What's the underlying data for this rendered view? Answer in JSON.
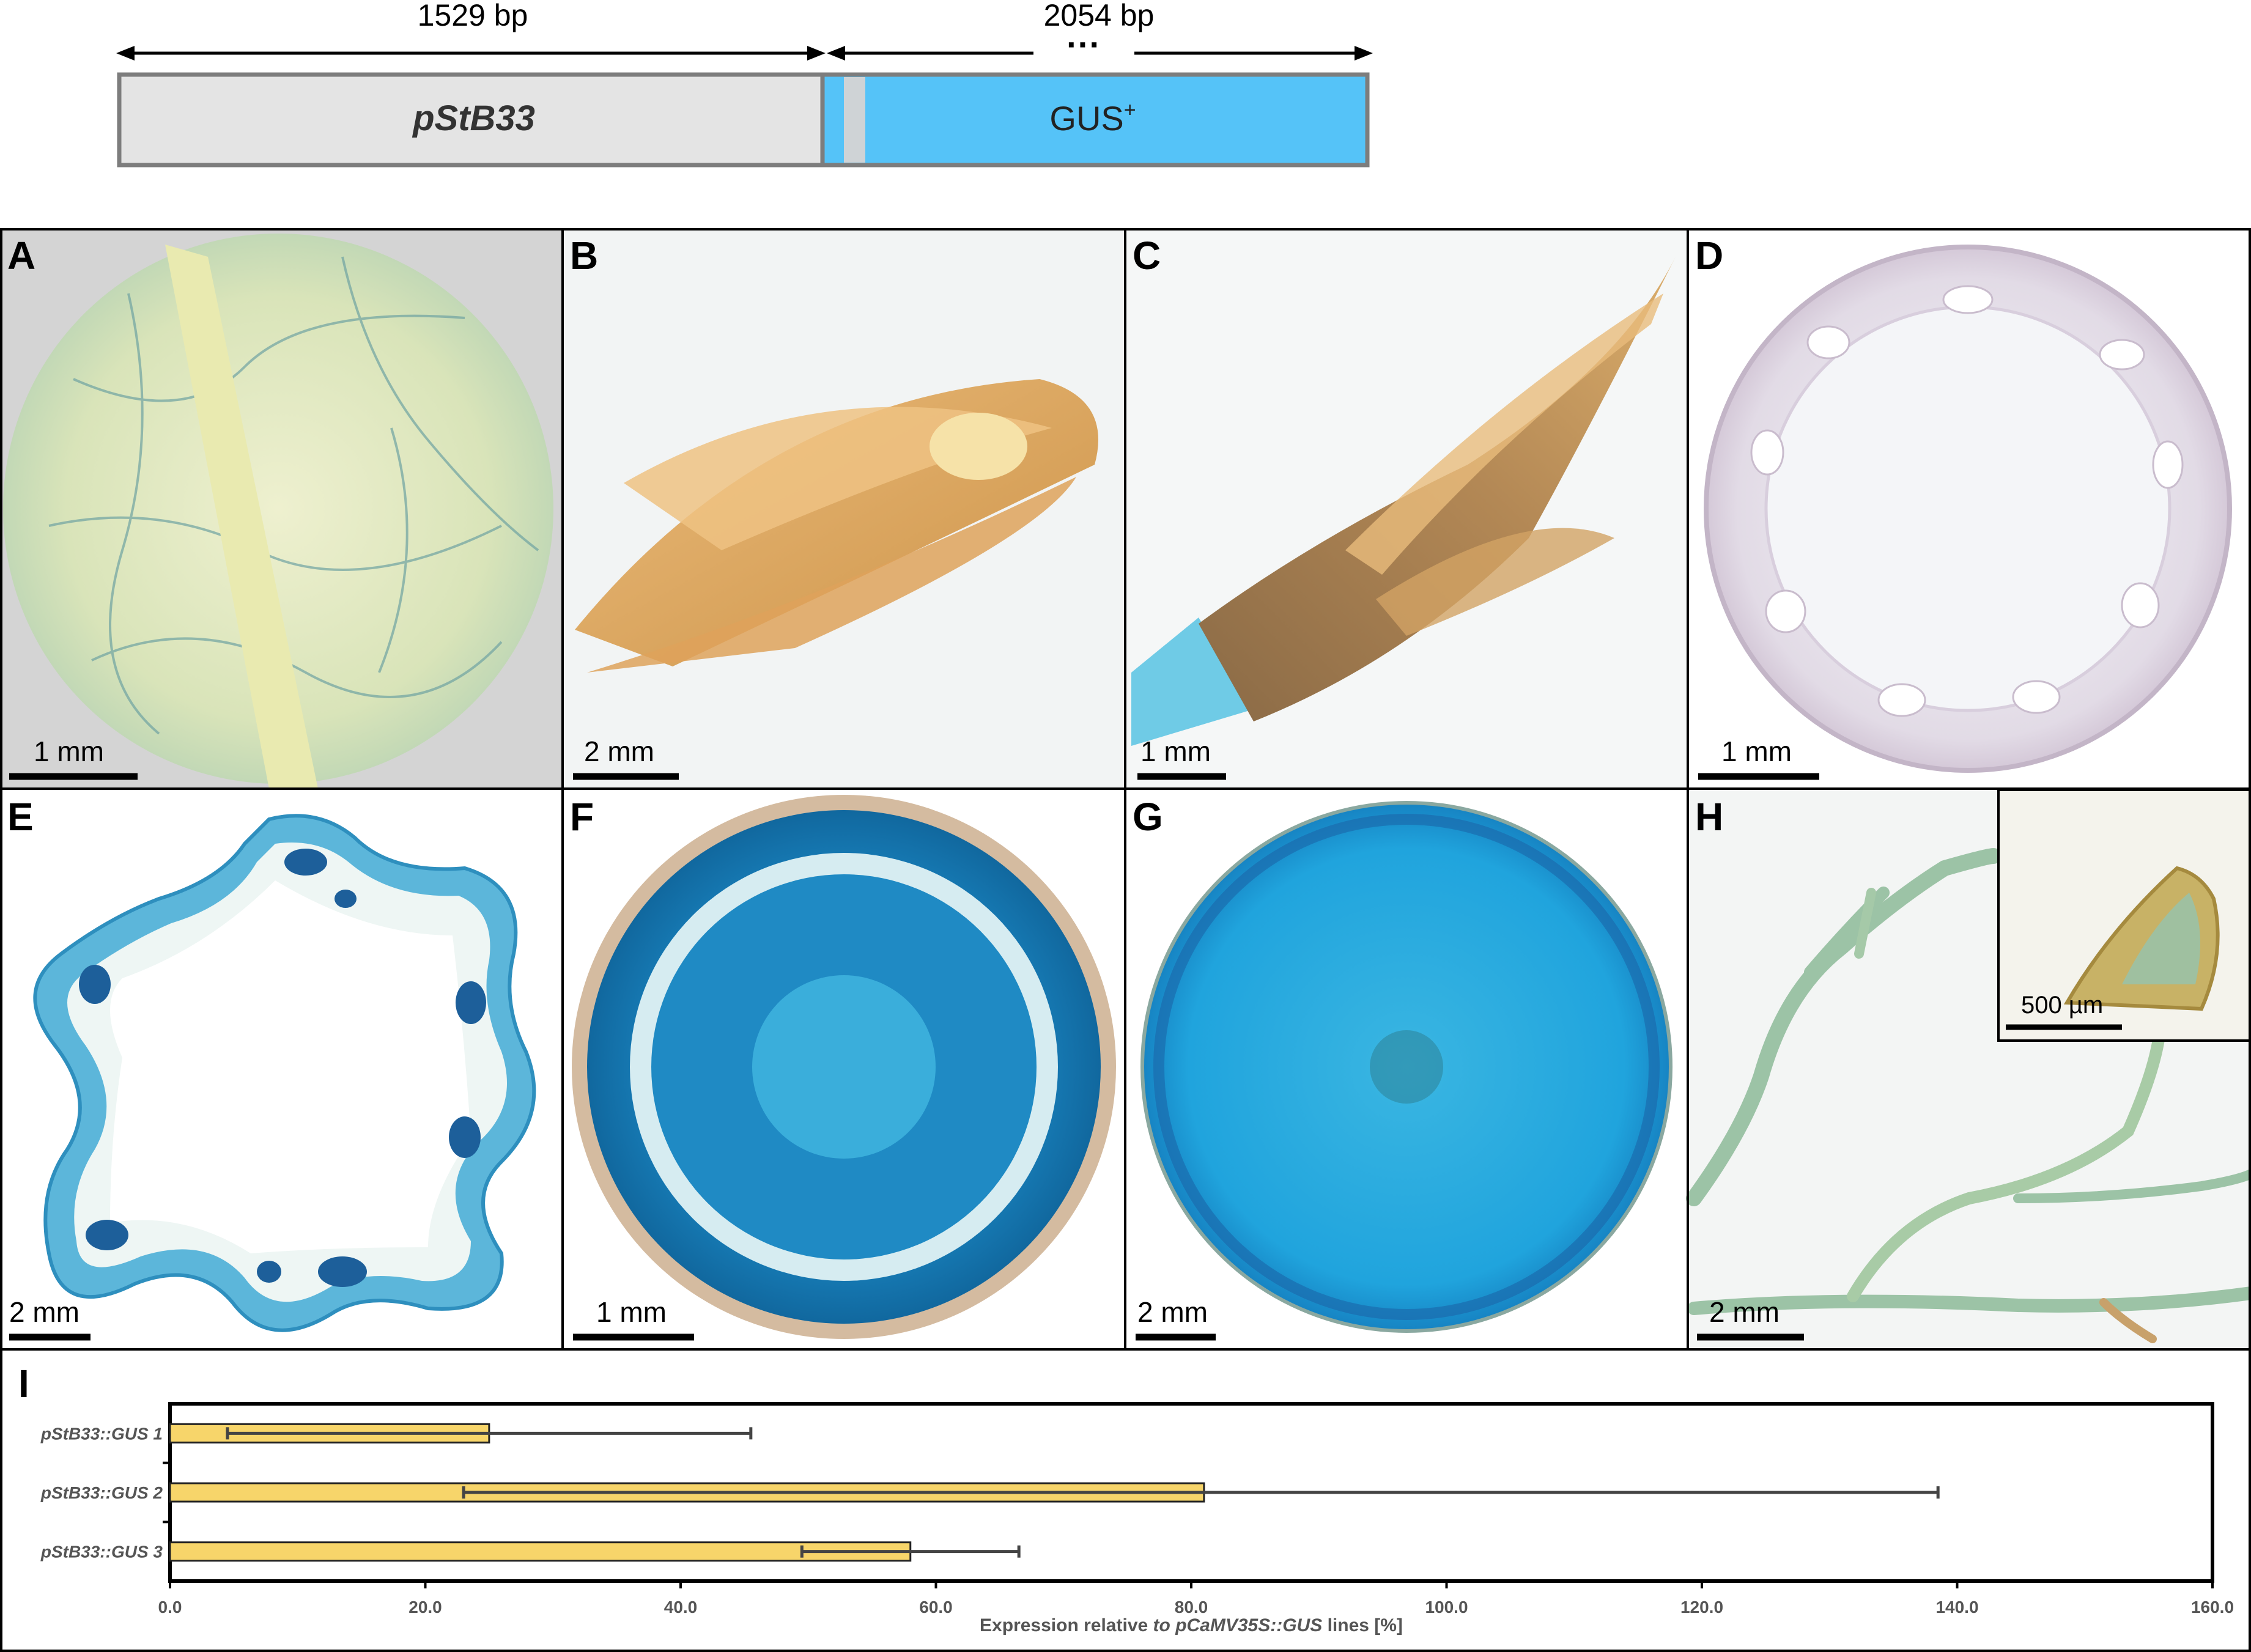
{
  "construct": {
    "len1": "1529 bp",
    "len2": "2054 bp",
    "dots": "···",
    "promoter": "pStB33",
    "reporter": "GUS",
    "reporter_sup": "+",
    "colors": {
      "promoter": "#e4e4e4",
      "reporter": "#55c3f8",
      "spacer": "#cfd3d6",
      "border": "#7d7d7d"
    }
  },
  "panels": [
    {
      "label": "A",
      "scale": "1 mm"
    },
    {
      "label": "B",
      "scale": "2 mm"
    },
    {
      "label": "C",
      "scale": "1 mm"
    },
    {
      "label": "D",
      "scale": "1 mm"
    },
    {
      "label": "E",
      "scale": "2 mm"
    },
    {
      "label": "F",
      "scale": "1 mm"
    },
    {
      "label": "G",
      "scale": "2 mm"
    },
    {
      "label": "H",
      "scale": "2 mm",
      "inset_scale": "500 µm"
    }
  ],
  "chart_label": "I",
  "chart_data": {
    "type": "bar",
    "orientation": "horizontal",
    "categories": [
      "pStB33::GUS 1",
      "pStB33::GUS 2",
      "pStB33::GUS 3"
    ],
    "values": [
      25.0,
      81.0,
      58.0
    ],
    "error_low": [
      4.5,
      23.0,
      49.5
    ],
    "error_high": [
      45.5,
      138.5,
      66.5
    ],
    "xlabel_prefix": "Expression relative",
    "xlabel_italic": " to pCaMV35S::GUS",
    "xlabel_suffix": " lines [%]",
    "xlim": [
      0,
      160
    ],
    "xticks": [
      "0.0",
      "20.0",
      "40.0",
      "60.0",
      "80.0",
      "100.0",
      "120.0",
      "140.0",
      "160.0"
    ],
    "bar_color": "#f7d56a"
  }
}
